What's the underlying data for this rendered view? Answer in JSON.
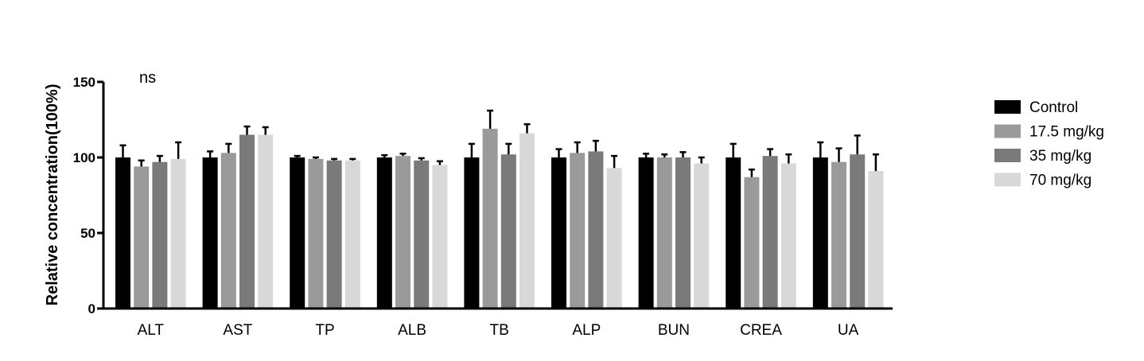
{
  "chart_data": {
    "type": "bar",
    "title": "",
    "xlabel": "",
    "ylabel": "Relative concentration(100%)",
    "ylim": [
      0,
      150
    ],
    "yticks": [
      "0",
      "50",
      "100",
      "150"
    ],
    "annotation": "ns",
    "categories": [
      "ALT",
      "AST",
      "TP",
      "ALB",
      "TB",
      "ALP",
      "BUN",
      "CREA",
      "UA"
    ],
    "series": [
      {
        "name": "Control",
        "color": "#000000",
        "values": [
          100,
          100,
          100,
          100,
          100,
          100,
          100,
          100,
          100
        ],
        "errors": [
          8,
          4,
          1,
          1.5,
          9,
          5.5,
          2.5,
          9,
          10
        ]
      },
      {
        "name": "17.5 mg/kg",
        "color": "#9a9a9a",
        "values": [
          94,
          103,
          99,
          101,
          119,
          103,
          100,
          87,
          97
        ],
        "errors": [
          4,
          6,
          1,
          1.5,
          12,
          7,
          2,
          5,
          9
        ]
      },
      {
        "name": "35 mg/kg",
        "color": "#7a7a7a",
        "values": [
          97,
          115,
          98,
          98,
          102,
          104,
          100,
          101,
          102
        ],
        "errors": [
          4,
          5.5,
          1,
          1.5,
          7,
          7,
          3.5,
          4.5,
          12.5
        ]
      },
      {
        "name": "70 mg/kg",
        "color": "#d8d8d8",
        "values": [
          99,
          115,
          98,
          95,
          116,
          93,
          96,
          96,
          91
        ],
        "errors": [
          11,
          5,
          1,
          2.5,
          6,
          8,
          4,
          6,
          11
        ]
      }
    ],
    "legend_position": "right"
  }
}
